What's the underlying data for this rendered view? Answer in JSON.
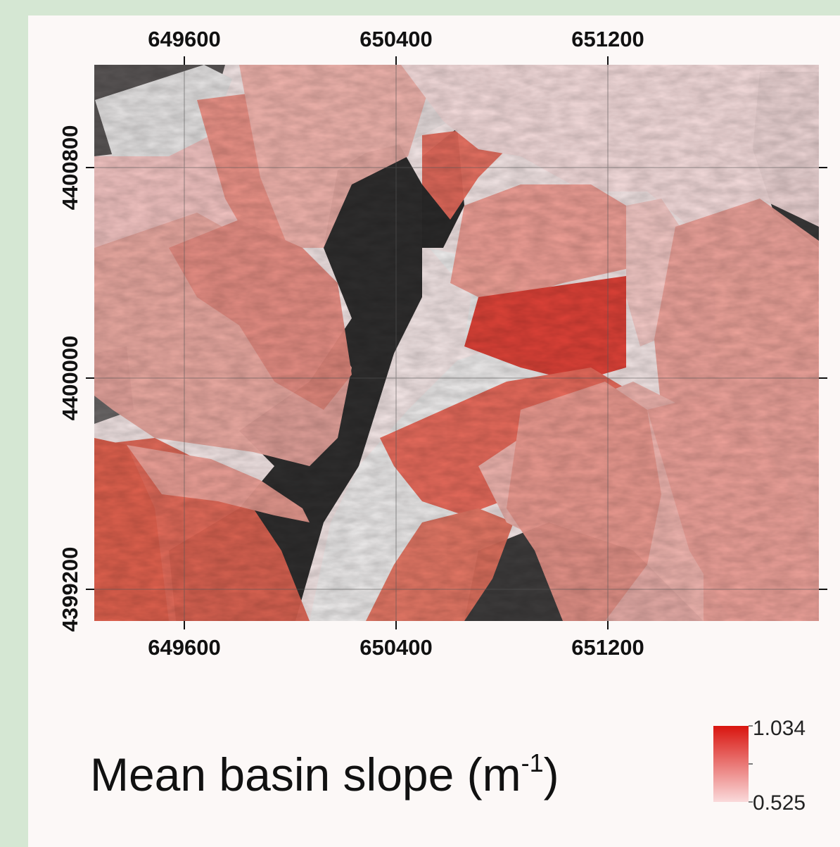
{
  "map": {
    "x_axis": {
      "top_ticks": [
        "649600",
        "650400",
        "651200"
      ],
      "bottom_ticks": [
        "649600",
        "650400",
        "651200"
      ]
    },
    "y_axis": {
      "left_ticks": [
        "4400800",
        "4400000",
        "4399200"
      ]
    },
    "legend": {
      "title_main": "Mean basin slope (m",
      "title_sup": "-1",
      "title_close": ")",
      "max_label": "1.034",
      "min_label": "0.525",
      "color_max": "#d9150f",
      "color_min": "#fadadb"
    },
    "colors": {
      "panel_bg": "#fcf8f7",
      "page_bg": "#d5e7d3",
      "grid": "#555555"
    }
  }
}
